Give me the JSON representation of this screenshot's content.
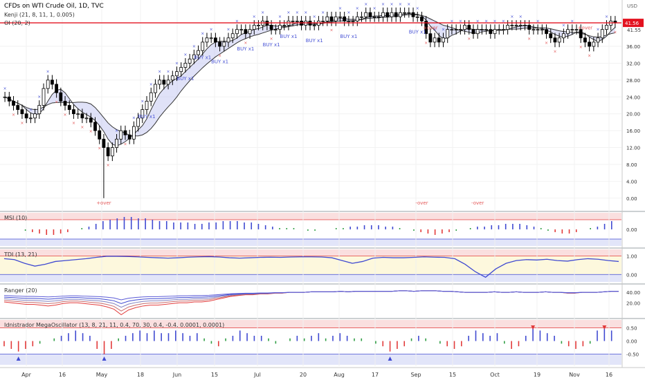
{
  "header": {
    "symbol": "CFDs on WTI Crude Oil, 1D, TVC",
    "indicators": [
      "Kenji (21, 8, 11, 1, 0.005)",
      "OI (20, 2)"
    ]
  },
  "currency": "USD",
  "last_price": "41.56",
  "secondary_price": "41.55",
  "colors": {
    "price_line": "#e3121f",
    "up_candle": "#ffffff",
    "down_candle": "#000000",
    "marker_blue": "#4a55d6",
    "marker_red": "#e45a5a",
    "band_red": "#f6c9c9",
    "band_yellow": "#fdf8dd",
    "band_blue": "#cfd3f5",
    "osc_blue": "#3f49d1",
    "osc_red": "#e23a3a",
    "osc_green": "#2f9e44"
  },
  "x_axis": [
    "Apr",
    "16",
    "May",
    "18",
    "Jun",
    "15",
    "Jul",
    "20",
    "Aug",
    "17",
    "Sep",
    "15",
    "Oct",
    "19",
    "Nov",
    "16"
  ],
  "annotations": {
    "buy": [
      "BUY x1",
      "BUY x1",
      "BUY x1",
      "BUY x1",
      "BUY x1",
      "BUY x1",
      "BUY x1",
      "BUY x1",
      "BUY x1",
      "BUY x1"
    ],
    "over": [
      "+over",
      "-over",
      "+over",
      "+over",
      "-over"
    ]
  },
  "chart_data": [
    {
      "type": "candlestick",
      "ticks": [
        "0.00",
        "4.00",
        "8.00",
        "12.00",
        "16.00",
        "20.00",
        "24.00",
        "28.00",
        "32.00",
        "36.00"
      ],
      "ylim": [
        -2,
        46
      ],
      "close": [
        24,
        23,
        22,
        21,
        20,
        19,
        19,
        20,
        22,
        26,
        28,
        27,
        25,
        23,
        22,
        21,
        20,
        20,
        19,
        19,
        18,
        16,
        14,
        12,
        10,
        12,
        14,
        16,
        15,
        14,
        17,
        19,
        21,
        23,
        25,
        27,
        28,
        27,
        28,
        29,
        30,
        31,
        32,
        33,
        34,
        35,
        37,
        38,
        38,
        37,
        36,
        37,
        38,
        39,
        40,
        40,
        39,
        40,
        41,
        41,
        42,
        41,
        40,
        40,
        41,
        41,
        42,
        42,
        42,
        41,
        42,
        41,
        41,
        42,
        42,
        43,
        42,
        43,
        43,
        42,
        42,
        42,
        43,
        43,
        44,
        43,
        43,
        43,
        44,
        43,
        44,
        43,
        44,
        44,
        44,
        43,
        43,
        42,
        39,
        37,
        38,
        37,
        38,
        40,
        40,
        40,
        40,
        41,
        40,
        39,
        40,
        40,
        40,
        39,
        40,
        40,
        40,
        41,
        41,
        41,
        41,
        41,
        40,
        40,
        40,
        40,
        39,
        38,
        37,
        38,
        39,
        40,
        40,
        40,
        38,
        37,
        36,
        37,
        38,
        40,
        41,
        42,
        41.56
      ],
      "crash_low_index": 23,
      "crash_low": 0.0
    },
    {
      "type": "bar",
      "name": "MSI (10)",
      "ticks": [
        "0.00"
      ],
      "ylim": [
        -1,
        1
      ],
      "values": [
        0,
        0,
        0,
        -0.1,
        -0.2,
        -0.3,
        -0.4,
        -0.4,
        -0.3,
        -0.2,
        0,
        0.1,
        0.2,
        0.4,
        0.6,
        0.7,
        0.8,
        0.9,
        0.9,
        0.8,
        0.8,
        0.7,
        0.6,
        0.6,
        0.5,
        0.5,
        0.5,
        0.4,
        0.4,
        0.5,
        0.5,
        0.6,
        0.6,
        0.6,
        0.5,
        0.5,
        0.4,
        0.3,
        0.2,
        0.1,
        0.1,
        0.1,
        0,
        -0.1,
        -0.1,
        0,
        0,
        0.1,
        0.1,
        0.2,
        0.2,
        0.3,
        0.3,
        0.3,
        0.2,
        0.2,
        0.1,
        0,
        -0.1,
        -0.2,
        -0.3,
        -0.4,
        -0.3,
        -0.2,
        -0.1,
        0,
        0.1,
        0.2,
        0.2,
        0.3,
        0.3,
        0.4,
        0.4,
        0.4,
        0.3,
        0.2,
        0.1,
        -0.1,
        -0.2,
        -0.3,
        -0.3,
        -0.2,
        0,
        0.1,
        0.2,
        0.4,
        0.6
      ]
    },
    {
      "type": "line",
      "name": "TDI (13, 21)",
      "ticks": [
        "1.00",
        "0.00"
      ],
      "ylim": [
        -0.25,
        1.2
      ],
      "values": [
        0.85,
        0.8,
        0.6,
        0.45,
        0.55,
        0.7,
        0.75,
        0.8,
        0.85,
        0.92,
        0.98,
        0.98,
        0.97,
        0.95,
        0.92,
        0.9,
        0.88,
        0.9,
        0.93,
        0.95,
        0.96,
        0.94,
        0.9,
        0.88,
        0.9,
        0.92,
        0.93,
        0.92,
        0.94,
        0.95,
        0.95,
        0.94,
        0.9,
        0.75,
        0.6,
        0.7,
        0.88,
        0.92,
        0.9,
        0.9,
        0.92,
        0.95,
        0.93,
        0.92,
        0.85,
        0.55,
        0.15,
        -0.15,
        0.3,
        0.6,
        0.75,
        0.8,
        0.78,
        0.82,
        0.75,
        0.72,
        0.8,
        0.85,
        0.82,
        0.75,
        0.7
      ]
    },
    {
      "type": "line",
      "name": "Ranger (20)",
      "ticks": [
        "40.00",
        "20.00"
      ],
      "ylim": [
        0,
        48
      ],
      "values": [
        28,
        27,
        26,
        25,
        25,
        24,
        23,
        24,
        26,
        27,
        27,
        26,
        25,
        24,
        22,
        19,
        12,
        18,
        21,
        23,
        24,
        24,
        25,
        26,
        27,
        27,
        28,
        28,
        29,
        31,
        33,
        35,
        36,
        37,
        37,
        38,
        38,
        39,
        39,
        40,
        40,
        40,
        41,
        41,
        41,
        41,
        42,
        41,
        42,
        42,
        42,
        42,
        42,
        42,
        43,
        43,
        42,
        43,
        43,
        43,
        42,
        42,
        41,
        40,
        40,
        40,
        40,
        41,
        40,
        40,
        41,
        40,
        40,
        40,
        41,
        40,
        40,
        39,
        39,
        40,
        40,
        40,
        41,
        42,
        42
      ]
    },
    {
      "type": "bar",
      "name": "Idnistrador MegaOscillator (13, 8, 21, 11, 0.4, 70, 30, 0.4, -0.4, 0.0001, 0.0001)",
      "ticks": [
        "0.50",
        "0.00",
        "-0.50"
      ],
      "ylim": [
        -0.8,
        0.7
      ],
      "values": [
        -0.2,
        -0.3,
        -0.4,
        -0.3,
        -0.2,
        -0.1,
        0,
        0.1,
        0.2,
        0.3,
        0.4,
        0.3,
        0.2,
        -0.3,
        -0.5,
        -0.3,
        0.1,
        0.2,
        0.3,
        0.4,
        0.3,
        0.4,
        0.3,
        0.3,
        0.4,
        0.3,
        0.2,
        0.3,
        0.1,
        -0.1,
        -0.2,
        0.1,
        0.2,
        0.4,
        0.3,
        0.2,
        0.2,
        0.1,
        -0.1,
        0,
        0.1,
        0.2,
        0.1,
        0.2,
        0.3,
        0.1,
        0.2,
        0.3,
        0.2,
        0.1,
        0.1,
        0,
        -0.1,
        -0.2,
        -0.4,
        -0.3,
        -0.2,
        0.1,
        0.2,
        0.1,
        0,
        -0.1,
        -0.2,
        -0.3,
        -0.2,
        0.2,
        0.4,
        0.3,
        0.2,
        0.3,
        -0.1,
        -0.3,
        -0.2,
        0.2,
        0.5,
        0.4,
        0.3,
        0.2,
        -0.1,
        -0.2,
        -0.3,
        -0.2,
        -0.1,
        0.4,
        0.5,
        0.4
      ]
    }
  ]
}
